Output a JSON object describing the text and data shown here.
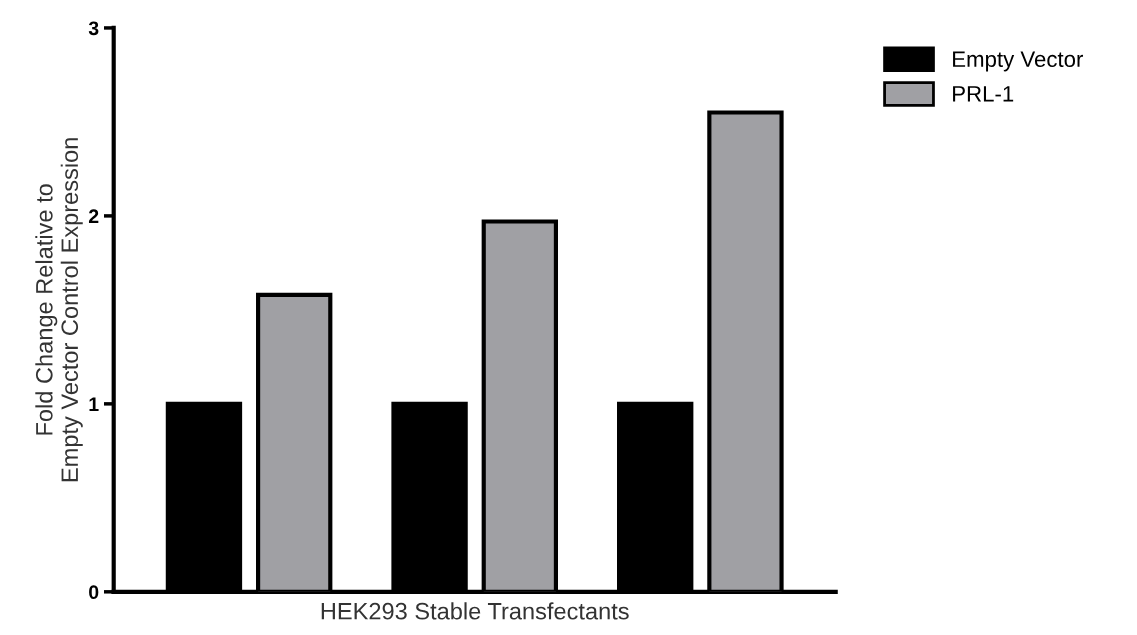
{
  "chart_data": {
    "type": "bar",
    "xlabel": "HEK293 Stable Transfectants",
    "ylabel": "Fold Change Relative to\nEmpty Vector Control Expression",
    "categories": [
      null,
      null,
      null
    ],
    "series": [
      {
        "name": "Empty Vector",
        "color": "#000000",
        "values": [
          1.0,
          1.0,
          1.0
        ]
      },
      {
        "name": "PRL-1",
        "color": "#a0a0a4",
        "values": [
          1.58,
          1.97,
          2.55
        ]
      }
    ],
    "ylim": [
      0,
      3
    ],
    "yticks": [
      0,
      1,
      2,
      3
    ],
    "grid": false,
    "legend": "top right",
    "tick_labels": "y"
  }
}
